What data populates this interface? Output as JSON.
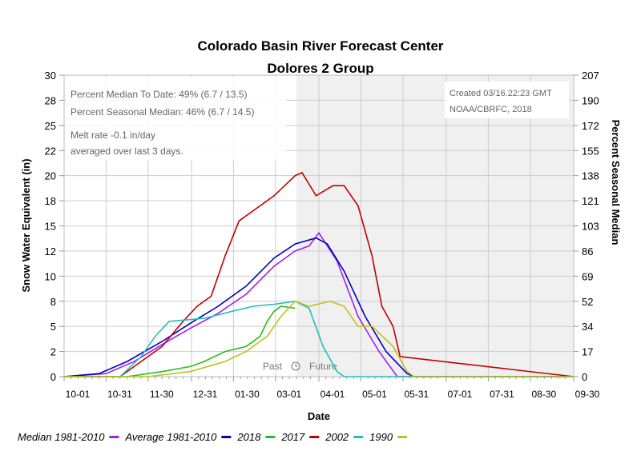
{
  "chart_data": {
    "type": "line",
    "title": "Colorado Basin River Forecast Center",
    "subtitle": "Dolores 2 Group",
    "xlabel": "Date",
    "ylabel": "Snow Water Equivalent (in)",
    "y2label": "Percent Seasonal Median",
    "ylim": [
      0,
      30
    ],
    "y2lim": [
      0,
      207
    ],
    "yticks": [
      "0",
      "2",
      "5",
      "8",
      "10",
      "12",
      "15",
      "18",
      "20",
      "22",
      "25",
      "28",
      "30"
    ],
    "y2ticks": [
      "0",
      "17",
      "34",
      "52",
      "69",
      "86",
      "103",
      "121",
      "138",
      "155",
      "172",
      "190",
      "207"
    ],
    "xticks": [
      "10-01",
      "10-31",
      "11-30",
      "12-31",
      "01-30",
      "03-01",
      "04-01",
      "05-01",
      "05-31",
      "07-01",
      "07-31",
      "08-30",
      "09-30"
    ],
    "grid": true,
    "shaded_region": {
      "from": "03-16",
      "to": "09-30",
      "label_past": "Past",
      "label_future": "Future",
      "icon": "clock-icon"
    },
    "annotations": {
      "stats": [
        "Percent Median To Date: 49% (6.7 / 13.5)",
        "Percent Seasonal Median: 46% (6.7 / 14.5)"
      ],
      "melt": [
        "Melt rate -0.1 in/day",
        "averaged over last 3 days."
      ],
      "credit": [
        "Created 03/16.22:23 GMT",
        "NOAA/CBRFC, 2018"
      ]
    },
    "legend_placement": "bottom",
    "series": [
      {
        "name": "Median 1981-2010",
        "color": "#a020f0",
        "x": [
          "10-01",
          "10-31",
          "11-20",
          "12-10",
          "12-30",
          "01-19",
          "02-08",
          "02-28",
          "03-15",
          "03-25",
          "04-01",
          "04-14",
          "04-29",
          "05-14",
          "05-27",
          "09-30"
        ],
        "values": [
          0,
          0.3,
          1.5,
          3.2,
          4.8,
          6.3,
          8.2,
          11,
          12.5,
          13,
          14.3,
          11.5,
          6,
          2.5,
          0,
          0
        ]
      },
      {
        "name": "Average 1981-2010",
        "color": "#0000c0",
        "x": [
          "10-01",
          "10-26",
          "11-15",
          "12-10",
          "12-30",
          "01-19",
          "02-08",
          "02-28",
          "03-15",
          "03-30",
          "04-07",
          "04-19",
          "05-04",
          "05-19",
          "06-03",
          "06-08",
          "09-30"
        ],
        "values": [
          0,
          0.3,
          1.5,
          3.5,
          5.3,
          7,
          9,
          11.8,
          13.2,
          13.8,
          13.2,
          10.5,
          6,
          2.5,
          0.3,
          0,
          0
        ]
      },
      {
        "name": "2018",
        "color": "#20c020",
        "x": [
          "10-01",
          "11-15",
          "12-10",
          "12-30",
          "01-09",
          "01-24",
          "02-08",
          "02-18",
          "02-23",
          "02-28",
          "03-05",
          "03-15"
        ],
        "values": [
          0,
          0,
          0.5,
          1,
          1.5,
          2.5,
          3,
          4,
          5.5,
          6.5,
          7,
          6.8
        ]
      },
      {
        "name": "2017",
        "color": "#c00000",
        "x": [
          "10-01",
          "11-10",
          "11-25",
          "12-10",
          "12-25",
          "01-04",
          "01-14",
          "01-24",
          "02-03",
          "02-13",
          "02-28",
          "03-15",
          "03-20",
          "03-30",
          "04-11",
          "04-19",
          "04-29",
          "05-09",
          "05-16",
          "05-24",
          "05-29",
          "09-30"
        ],
        "values": [
          0,
          0,
          1.5,
          3,
          5.5,
          7,
          8,
          12,
          15.5,
          16.5,
          18,
          20,
          20.3,
          18,
          19,
          19,
          17,
          12,
          7,
          5,
          2,
          0
        ]
      },
      {
        "name": "2002",
        "color": "#20c0c0",
        "x": [
          "10-01",
          "11-10",
          "11-25",
          "12-05",
          "12-15",
          "01-09",
          "01-29",
          "02-13",
          "02-28",
          "03-15",
          "03-25",
          "04-04",
          "04-14",
          "04-19",
          "09-30"
        ],
        "values": [
          0,
          0,
          2,
          4,
          5.5,
          5.8,
          6.5,
          7,
          7.2,
          7.5,
          6.8,
          3,
          0.5,
          0,
          0
        ]
      },
      {
        "name": "1990",
        "color": "#c0c020",
        "x": [
          "10-01",
          "11-30",
          "12-30",
          "01-24",
          "02-08",
          "02-23",
          "03-05",
          "03-15",
          "03-25",
          "04-09",
          "04-19",
          "04-24",
          "04-29",
          "05-09",
          "05-24",
          "06-03",
          "06-08",
          "09-30"
        ],
        "values": [
          0,
          0,
          0.5,
          1.5,
          2.5,
          4,
          6,
          7.5,
          7,
          7.5,
          7,
          6,
          5,
          5,
          3,
          0.5,
          0,
          0
        ]
      }
    ]
  }
}
